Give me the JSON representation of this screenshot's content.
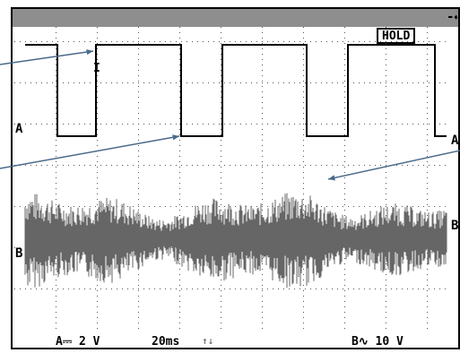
{
  "status": {
    "hold_label": "HOLD",
    "power_icon": "plug-icon"
  },
  "channels": {
    "a_marker": "A",
    "b_marker": "B",
    "a_right_marker": "A",
    "b_right_marker": "B"
  },
  "readout": {
    "channel_a": "A⎓ 2 V",
    "timebase": "20ms",
    "trigger_icon": "trigger-icon",
    "channel_b": "B∿ 10 V"
  },
  "colors": {
    "title_bar": "#8e8e8e",
    "trace": "#666666",
    "square_wave": "#000000",
    "grid": "#555555",
    "pointer": "#4a6a8a"
  }
}
